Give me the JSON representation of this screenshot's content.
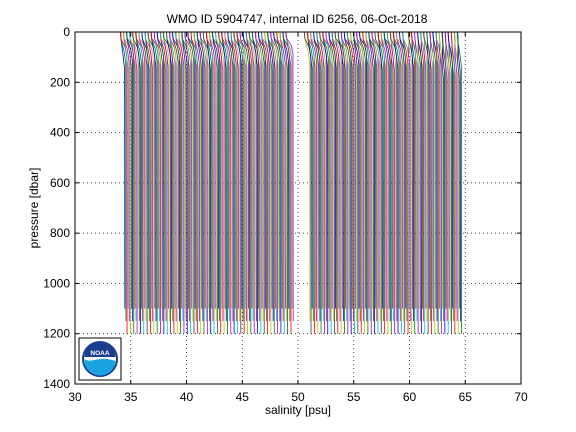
{
  "chart_data": {
    "type": "line",
    "title": "WMO ID 5904747, internal ID 6256, 06-Oct-2018",
    "xlabel": "salinity [psu]",
    "ylabel": "pressure [dbar]",
    "xlim": [
      30,
      70
    ],
    "ylim": [
      0,
      1400
    ],
    "y_reversed": true,
    "grid": true,
    "grid_style": "dotted",
    "xticks": [
      30,
      35,
      40,
      45,
      50,
      55,
      60,
      65,
      70
    ],
    "yticks": [
      0,
      200,
      400,
      600,
      800,
      1000,
      1200,
      1400
    ],
    "xtick_labels": [
      "30",
      "35",
      "40",
      "45",
      "50",
      "55",
      "60",
      "65",
      "70"
    ],
    "ytick_labels": [
      "0",
      "200",
      "400",
      "600",
      "800",
      "1000",
      "1200",
      "1400"
    ],
    "layout_note": "waterfall of salinity profiles, each successive profile offset by about 0.1 psu; gap of missing profiles near 49.5-51 psu",
    "series_colors": [
      "#0000ff",
      "#008000",
      "#ff0000",
      "#00bfbf",
      "#bf00bf",
      "#bfbf00",
      "#404040"
    ],
    "profile_start_salinity": 34.45,
    "profile_step_psu": 0.1,
    "profile_count": 303,
    "gap_profiles_psu": [
      49.6,
      51.0
    ],
    "profile_shape": {
      "surface_offset_psu": -0.35,
      "halocline_bottom_dbar": 150,
      "deep_offset_psu": 0.0
    },
    "profile_max_pressure_dbar": [
      1100,
      1150,
      1200
    ],
    "logo": {
      "name": "noaa-logo",
      "text": "NOAA"
    }
  }
}
